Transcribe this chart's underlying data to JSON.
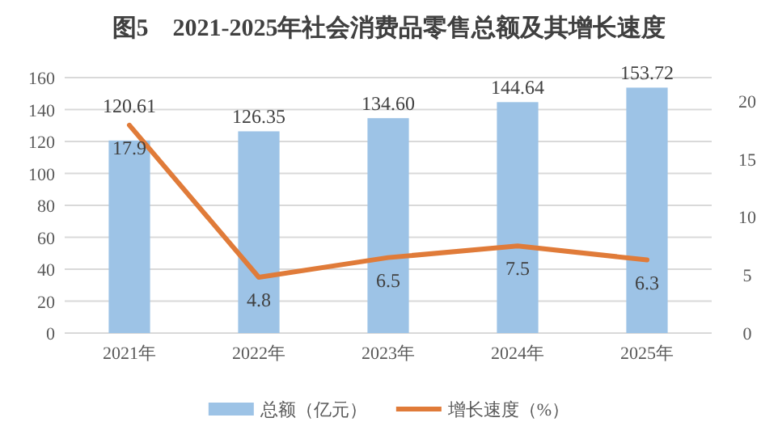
{
  "chart_data": {
    "type": "bar",
    "title": "图5　2021-2025年社会消费品零售总额及其增长速度",
    "categories": [
      "2021年",
      "2022年",
      "2023年",
      "2024年",
      "2025年"
    ],
    "series": [
      {
        "name": "总额（亿元）",
        "color": "#9dc3e6",
        "values": [
          120.61,
          126.35,
          134.6,
          144.64,
          153.72
        ],
        "value_labels": [
          "120.61",
          "126.35",
          "134.60",
          "144.64",
          "153.72"
        ]
      },
      {
        "name": "增长速度（%）",
        "type": "line",
        "axis": "y2",
        "color": "#e07b39",
        "values": [
          17.9,
          4.8,
          6.5,
          7.5,
          6.3
        ],
        "value_labels": [
          "17.9",
          "4.8",
          "6.5",
          "7.5",
          "6.3"
        ]
      }
    ],
    "ylim": [
      0,
      160
    ],
    "yticks": [
      0,
      20,
      40,
      60,
      80,
      100,
      120,
      140,
      160
    ],
    "y2lim": [
      0,
      22
    ],
    "y2ticks": [
      0,
      5,
      10,
      15,
      20
    ],
    "grid": "y",
    "legend": "bottom",
    "marker": "none",
    "line_style": "solid"
  }
}
